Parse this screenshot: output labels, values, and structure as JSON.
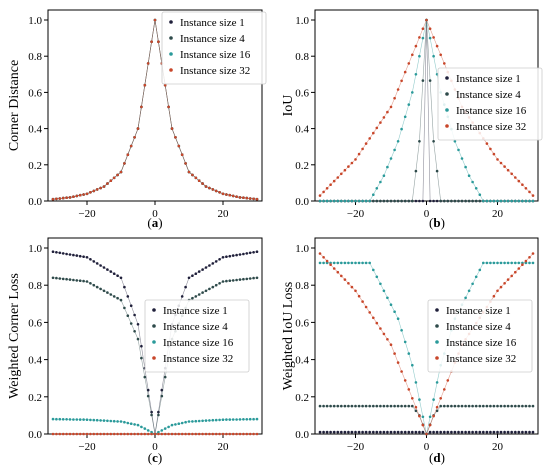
{
  "chart_data": [
    {
      "type": "scatter",
      "panel": "a",
      "caption": "(a)",
      "ylabel": "Corner Distance",
      "xlabel": "",
      "xlim": [
        -30,
        30
      ],
      "ylim": [
        0,
        1
      ],
      "xticks": [
        -20,
        0,
        20
      ],
      "yticks": [
        0.0,
        0.2,
        0.4,
        0.6,
        0.8,
        1.0
      ],
      "grid": false,
      "legend_position": "top-right",
      "series": [
        {
          "name": "Instance size 1",
          "color": "#1f1f3a",
          "x": [
            -30,
            -25,
            -20,
            -15,
            -10,
            -5,
            0,
            5,
            10,
            15,
            20,
            25,
            30
          ],
          "y": [
            0.01,
            0.02,
            0.04,
            0.08,
            0.16,
            0.4,
            1.0,
            0.4,
            0.16,
            0.08,
            0.04,
            0.02,
            0.01
          ]
        },
        {
          "name": "Instance size 4",
          "color": "#2e4a4a",
          "x": [
            -30,
            -25,
            -20,
            -15,
            -10,
            -5,
            0,
            5,
            10,
            15,
            20,
            25,
            30
          ],
          "y": [
            0.01,
            0.02,
            0.04,
            0.08,
            0.16,
            0.4,
            1.0,
            0.4,
            0.16,
            0.08,
            0.04,
            0.02,
            0.01
          ]
        },
        {
          "name": "Instance size 16",
          "color": "#2a9a9a",
          "x": [
            -30,
            -25,
            -20,
            -15,
            -10,
            -5,
            0,
            5,
            10,
            15,
            20,
            25,
            30
          ],
          "y": [
            0.01,
            0.02,
            0.04,
            0.08,
            0.16,
            0.4,
            1.0,
            0.4,
            0.16,
            0.08,
            0.04,
            0.02,
            0.01
          ]
        },
        {
          "name": "Instance size 32",
          "color": "#c8462a",
          "x": [
            -30,
            -25,
            -20,
            -15,
            -10,
            -5,
            0,
            5,
            10,
            15,
            20,
            25,
            30
          ],
          "y": [
            0.01,
            0.02,
            0.04,
            0.08,
            0.16,
            0.4,
            1.0,
            0.4,
            0.16,
            0.08,
            0.04,
            0.02,
            0.01
          ]
        }
      ]
    },
    {
      "type": "scatter",
      "panel": "b",
      "caption": "(b)",
      "ylabel": "IoU",
      "xlabel": "",
      "xlim": [
        -30,
        30
      ],
      "ylim": [
        0,
        1
      ],
      "xticks": [
        -20,
        0,
        20
      ],
      "yticks": [
        0.0,
        0.2,
        0.4,
        0.6,
        0.8,
        1.0
      ],
      "grid": false,
      "legend_position": "center-right",
      "series": [
        {
          "name": "Instance size 1",
          "color": "#1f1f3a",
          "x": [
            -30,
            -1,
            0,
            1,
            30
          ],
          "y": [
            0,
            0,
            1.0,
            0,
            0
          ]
        },
        {
          "name": "Instance size 4",
          "color": "#2e4a4a",
          "x": [
            -30,
            -4,
            -2,
            0,
            2,
            4,
            30
          ],
          "y": [
            0,
            0,
            0.33,
            1.0,
            0.33,
            0,
            0
          ]
        },
        {
          "name": "Instance size 16",
          "color": "#2a9a9a",
          "x": [
            -30,
            -16,
            -12,
            -8,
            -4,
            0,
            4,
            8,
            12,
            16,
            30
          ],
          "y": [
            0,
            0,
            0.14,
            0.33,
            0.6,
            1.0,
            0.6,
            0.33,
            0.14,
            0,
            0
          ]
        },
        {
          "name": "Instance size 32",
          "color": "#c8462a",
          "x": [
            -30,
            -20,
            -10,
            0,
            10,
            20,
            30
          ],
          "y": [
            0.03,
            0.23,
            0.52,
            1.0,
            0.52,
            0.23,
            0.03
          ]
        }
      ]
    },
    {
      "type": "scatter",
      "panel": "c",
      "caption": "(c)",
      "ylabel": "Weighted Corner Loss",
      "xlabel": "",
      "xlim": [
        -30,
        30
      ],
      "ylim": [
        0,
        1
      ],
      "xticks": [
        -20,
        0,
        20
      ],
      "yticks": [
        0.0,
        0.2,
        0.4,
        0.6,
        0.8,
        1.0
      ],
      "grid": false,
      "legend_position": "center-right",
      "series": [
        {
          "name": "Instance size 1",
          "color": "#1f1f3a",
          "x": [
            -30,
            -20,
            -10,
            -5,
            0,
            5,
            10,
            20,
            30
          ],
          "y": [
            0.98,
            0.95,
            0.84,
            0.59,
            0.0,
            0.59,
            0.84,
            0.95,
            0.98
          ]
        },
        {
          "name": "Instance size 4",
          "color": "#2e4a4a",
          "x": [
            -30,
            -20,
            -10,
            -5,
            0,
            5,
            10,
            20,
            30
          ],
          "y": [
            0.84,
            0.82,
            0.72,
            0.51,
            0.0,
            0.51,
            0.72,
            0.82,
            0.84
          ]
        },
        {
          "name": "Instance size 16",
          "color": "#2a9a9a",
          "x": [
            -30,
            -20,
            -10,
            -5,
            0,
            5,
            10,
            20,
            30
          ],
          "y": [
            0.08,
            0.077,
            0.067,
            0.048,
            0.0,
            0.048,
            0.067,
            0.077,
            0.08
          ]
        },
        {
          "name": "Instance size 32",
          "color": "#c8462a",
          "x": [
            -30,
            0,
            30
          ],
          "y": [
            0.0,
            0.0,
            0.0
          ]
        }
      ]
    },
    {
      "type": "scatter",
      "panel": "d",
      "caption": "(d)",
      "ylabel": "Weighted IoU Loss",
      "xlabel": "",
      "xlim": [
        -30,
        30
      ],
      "ylim": [
        0,
        1
      ],
      "xticks": [
        -20,
        0,
        20
      ],
      "yticks": [
        0.0,
        0.2,
        0.4,
        0.6,
        0.8,
        1.0
      ],
      "grid": false,
      "legend_position": "center-right",
      "series": [
        {
          "name": "Instance size 1",
          "color": "#1f1f3a",
          "x": [
            -30,
            -1,
            0,
            1,
            30
          ],
          "y": [
            0.01,
            0.01,
            0.0,
            0.01,
            0.01
          ]
        },
        {
          "name": "Instance size 4",
          "color": "#2e4a4a",
          "x": [
            -30,
            -4,
            -2,
            0,
            2,
            4,
            30
          ],
          "y": [
            0.15,
            0.15,
            0.1,
            0.0,
            0.1,
            0.15,
            0.15
          ]
        },
        {
          "name": "Instance size 16",
          "color": "#2a9a9a",
          "x": [
            -30,
            -16,
            -8,
            -4,
            0,
            4,
            8,
            16,
            30
          ],
          "y": [
            0.92,
            0.92,
            0.62,
            0.37,
            0.0,
            0.37,
            0.62,
            0.92,
            0.92
          ]
        },
        {
          "name": "Instance size 32",
          "color": "#c8462a",
          "x": [
            -30,
            -20,
            -10,
            0,
            10,
            20,
            30
          ],
          "y": [
            0.97,
            0.77,
            0.48,
            0.0,
            0.48,
            0.77,
            0.97
          ]
        }
      ]
    }
  ]
}
